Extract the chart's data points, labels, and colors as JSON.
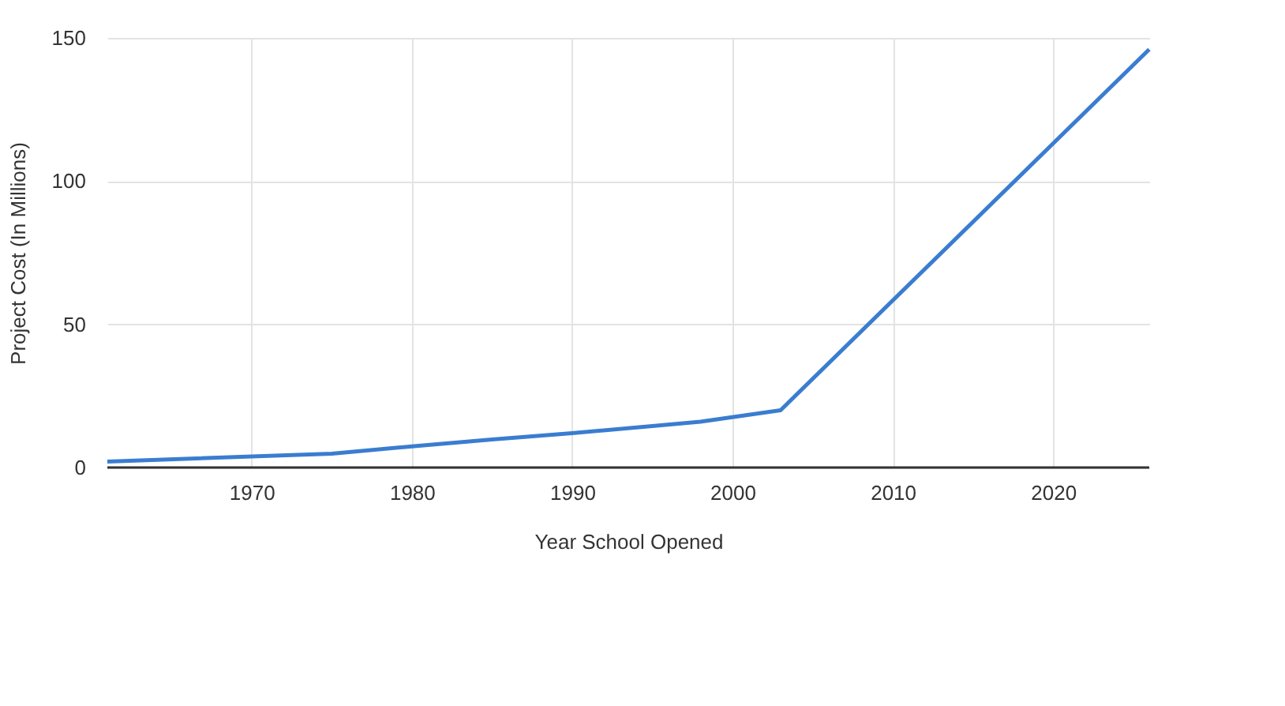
{
  "chart_data": {
    "type": "line",
    "xlabel": "Year School Opened",
    "ylabel": "Project Cost (In Millions)",
    "x": [
      1961,
      1975,
      1980,
      1985,
      1990,
      1995,
      1998,
      2003,
      2026
    ],
    "series": [
      {
        "color": "#3a7dd0",
        "values": [
          2.1,
          4.8,
          7.4,
          9.8,
          12,
          14.5,
          16,
          20,
          146
        ]
      }
    ],
    "xlim": [
      1961,
      2026
    ],
    "xticks": [
      1970,
      1980,
      1990,
      2000,
      2010,
      2020
    ],
    "ylim": [
      0,
      150
    ],
    "yticks": [
      0,
      50,
      100,
      150
    ],
    "grid": true,
    "legend": false,
    "marker": "none",
    "line_style": "solid"
  }
}
